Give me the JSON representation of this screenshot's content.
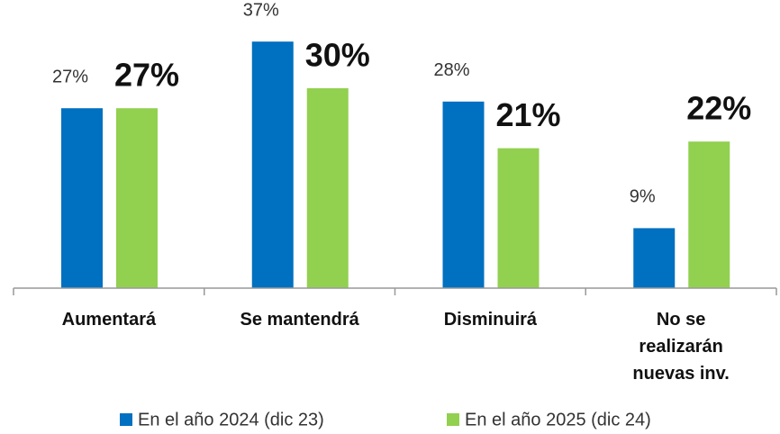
{
  "chart_data": {
    "type": "bar",
    "categories": [
      "Aumentará",
      "Se mantendrá",
      "Disminuirá",
      "No se realizarán nuevas inv."
    ],
    "series": [
      {
        "name": "En el año 2024 (dic 23)",
        "color": "#0070c0",
        "values": [
          27,
          37,
          28,
          9
        ],
        "value_labels": [
          "27%",
          "37%",
          "28%",
          "9%"
        ]
      },
      {
        "name": "En el año 2025 (dic 24)",
        "color": "#92d050",
        "values": [
          27,
          30,
          21,
          22
        ],
        "value_labels": [
          "27%",
          "30%",
          "21%",
          "22%"
        ]
      }
    ]
  }
}
